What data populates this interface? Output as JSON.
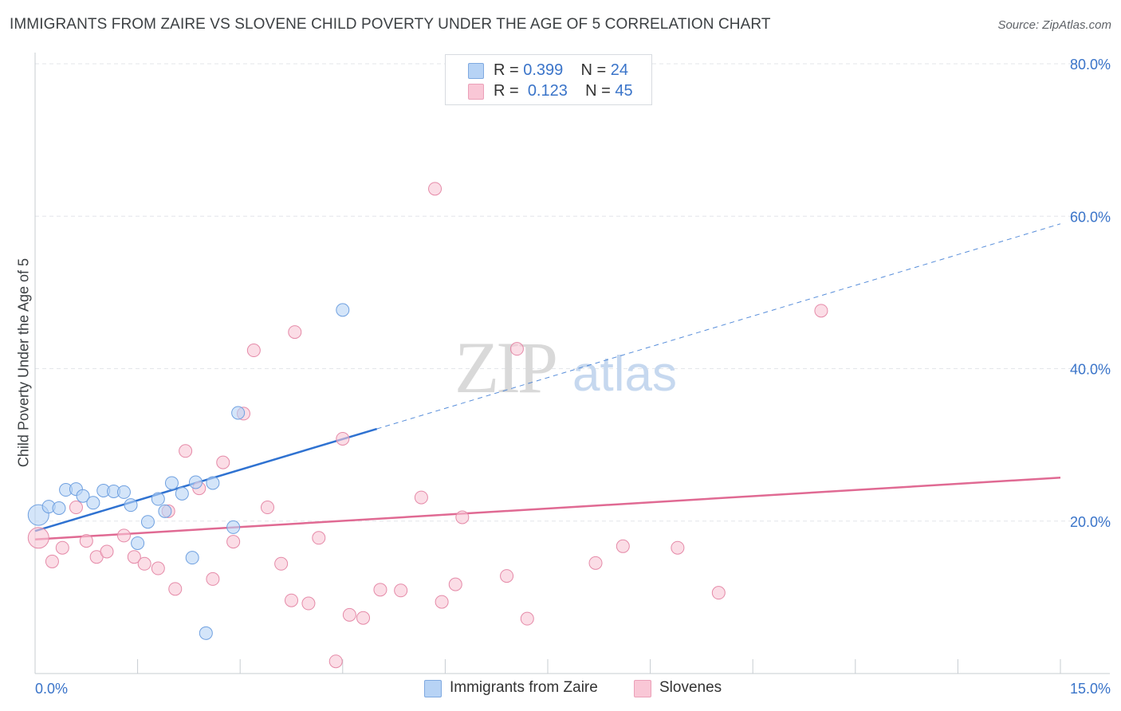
{
  "title": "IMMIGRANTS FROM ZAIRE VS SLOVENE CHILD POVERTY UNDER THE AGE OF 5 CORRELATION CHART",
  "source": "Source: ZipAtlas.com",
  "watermark": {
    "zip": "ZIP",
    "atlas": "atlas"
  },
  "legend": {
    "rows": [
      {
        "r_label": "R =",
        "r_value": "0.399",
        "n_label": "N =",
        "n_value": "24",
        "color": "#b7d3f5"
      },
      {
        "r_label": "R =",
        "r_value": "0.123",
        "n_label": "N =",
        "n_value": "45",
        "color": "#f9c7d6"
      }
    ]
  },
  "bottom_legend": [
    {
      "label": "Immigrants from Zaire",
      "color": "#b7d3f5"
    },
    {
      "label": "Slovenes",
      "color": "#f9c7d6"
    }
  ],
  "chart_data": {
    "type": "scatter",
    "title": "IMMIGRANTS FROM ZAIRE VS SLOVENE CHILD POVERTY UNDER THE AGE OF 5 CORRELATION CHART",
    "xlabel": "",
    "ylabel": "Child Poverty Under the Age of 5",
    "xlim": [
      0,
      15
    ],
    "ylim": [
      0,
      80
    ],
    "x_tick_labels": [
      {
        "value": 0,
        "label": "0.0%"
      },
      {
        "value": 15,
        "label": "15.0%"
      }
    ],
    "y_tick_labels": [
      {
        "value": 20,
        "label": "20.0%"
      },
      {
        "value": 40,
        "label": "40.0%"
      },
      {
        "value": 60,
        "label": "60.0%"
      },
      {
        "value": 80,
        "label": "80.0%"
      }
    ],
    "grid": true,
    "legend_position": "top-center",
    "series": [
      {
        "name": "Immigrants from Zaire",
        "color": "#6fa0e0",
        "fill": "#b7d3f5",
        "line_color": "#2f72d1",
        "points": [
          [
            0.05,
            20.8
          ],
          [
            0.2,
            21.9
          ],
          [
            0.35,
            21.7
          ],
          [
            0.45,
            24.1
          ],
          [
            0.6,
            24.2
          ],
          [
            0.7,
            23.3
          ],
          [
            0.85,
            22.4
          ],
          [
            1.0,
            24.0
          ],
          [
            1.15,
            23.9
          ],
          [
            1.3,
            23.8
          ],
          [
            1.4,
            22.1
          ],
          [
            1.5,
            17.1
          ],
          [
            1.65,
            19.9
          ],
          [
            1.8,
            22.9
          ],
          [
            1.9,
            21.3
          ],
          [
            2.0,
            25.0
          ],
          [
            2.15,
            23.6
          ],
          [
            2.3,
            15.2
          ],
          [
            2.35,
            25.1
          ],
          [
            2.5,
            5.3
          ],
          [
            2.6,
            25.0
          ],
          [
            2.9,
            19.2
          ],
          [
            2.97,
            34.2
          ],
          [
            4.5,
            47.7
          ]
        ],
        "trend": {
          "x": [
            0.0,
            5.0
          ],
          "y": [
            18.7,
            32.1
          ],
          "dashed_to": [
            15.0,
            59.0
          ]
        }
      },
      {
        "name": "Slovenes",
        "color": "#e58aa8",
        "fill": "#f9c7d6",
        "line_color": "#e06a93",
        "points": [
          [
            0.05,
            17.8
          ],
          [
            0.25,
            14.7
          ],
          [
            0.4,
            16.5
          ],
          [
            0.6,
            21.8
          ],
          [
            0.75,
            17.4
          ],
          [
            0.9,
            15.3
          ],
          [
            1.05,
            16.0
          ],
          [
            1.3,
            18.1
          ],
          [
            1.45,
            15.3
          ],
          [
            1.6,
            14.4
          ],
          [
            1.8,
            13.8
          ],
          [
            1.95,
            21.3
          ],
          [
            2.05,
            11.1
          ],
          [
            2.2,
            29.2
          ],
          [
            2.4,
            24.3
          ],
          [
            2.6,
            12.4
          ],
          [
            2.75,
            27.7
          ],
          [
            2.9,
            17.3
          ],
          [
            3.05,
            34.1
          ],
          [
            3.2,
            42.4
          ],
          [
            3.4,
            21.8
          ],
          [
            3.6,
            14.4
          ],
          [
            3.8,
            44.8
          ],
          [
            3.75,
            9.6
          ],
          [
            4.0,
            9.2
          ],
          [
            4.15,
            17.8
          ],
          [
            4.4,
            1.6
          ],
          [
            4.5,
            30.8
          ],
          [
            4.6,
            7.7
          ],
          [
            4.8,
            7.3
          ],
          [
            5.05,
            11.0
          ],
          [
            5.35,
            10.9
          ],
          [
            5.65,
            23.1
          ],
          [
            5.85,
            63.6
          ],
          [
            5.95,
            9.4
          ],
          [
            6.15,
            11.7
          ],
          [
            6.25,
            20.5
          ],
          [
            6.9,
            12.8
          ],
          [
            7.05,
            42.6
          ],
          [
            7.2,
            7.2
          ],
          [
            8.2,
            14.5
          ],
          [
            8.6,
            16.7
          ],
          [
            9.4,
            16.5
          ],
          [
            10.0,
            10.6
          ],
          [
            11.5,
            47.6
          ]
        ],
        "trend": {
          "x": [
            0.0,
            15.0
          ],
          "y": [
            17.6,
            25.7
          ]
        }
      }
    ]
  }
}
